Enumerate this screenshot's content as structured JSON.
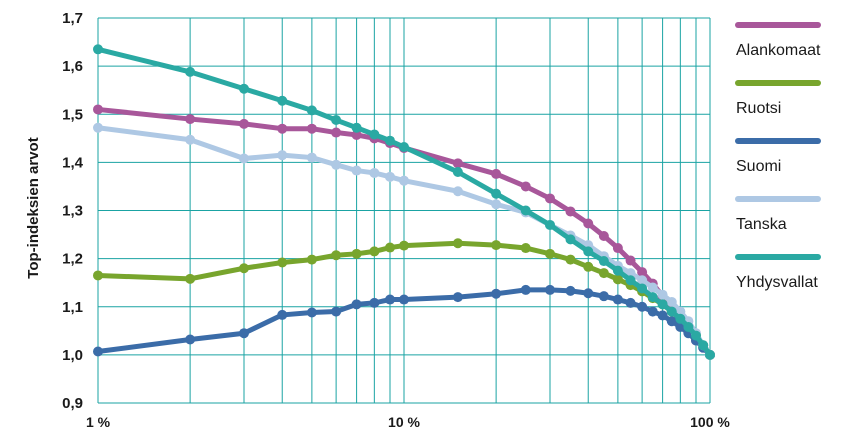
{
  "chart_data": {
    "type": "line",
    "title": "",
    "xlabel": "",
    "ylabel": "Top-indeksien arvot",
    "x_scale": "log",
    "xlim": [
      1,
      100
    ],
    "ylim": [
      0.9,
      1.7
    ],
    "x_ticks": [
      {
        "value": 1,
        "label": "1 %"
      },
      {
        "value": 10,
        "label": "10 %"
      },
      {
        "value": 100,
        "label": "100 %"
      }
    ],
    "y_ticks": [
      {
        "value": 0.9,
        "label": "0,9"
      },
      {
        "value": 1.0,
        "label": "1,0"
      },
      {
        "value": 1.1,
        "label": "1,1"
      },
      {
        "value": 1.2,
        "label": "1,2"
      },
      {
        "value": 1.3,
        "label": "1,3"
      },
      {
        "value": 1.4,
        "label": "1,4"
      },
      {
        "value": 1.5,
        "label": "1,5"
      },
      {
        "value": 1.6,
        "label": "1,6"
      },
      {
        "value": 1.7,
        "label": "1,7"
      }
    ],
    "grid": true,
    "grid_color": "#1aa3a3",
    "legend_position": "right",
    "series": [
      {
        "name": "Alankomaat",
        "color": "#a8579a",
        "points": [
          [
            1,
            1.51
          ],
          [
            2,
            1.49
          ],
          [
            3,
            1.48
          ],
          [
            4,
            1.47
          ],
          [
            5,
            1.47
          ],
          [
            6,
            1.462
          ],
          [
            7,
            1.457
          ],
          [
            8,
            1.45
          ],
          [
            9,
            1.44
          ],
          [
            10,
            1.43
          ],
          [
            15,
            1.398
          ],
          [
            20,
            1.376
          ],
          [
            25,
            1.35
          ],
          [
            30,
            1.325
          ],
          [
            35,
            1.298
          ],
          [
            40,
            1.273
          ],
          [
            45,
            1.247
          ],
          [
            50,
            1.222
          ],
          [
            55,
            1.196
          ],
          [
            60,
            1.172
          ],
          [
            65,
            1.148
          ],
          [
            70,
            1.122
          ],
          [
            75,
            1.098
          ],
          [
            80,
            1.073
          ],
          [
            85,
            1.05
          ],
          [
            90,
            1.03
          ],
          [
            95,
            1.015
          ],
          [
            100,
            1.0
          ]
        ]
      },
      {
        "name": "Ruotsi",
        "color": "#78a52d",
        "points": [
          [
            1,
            1.165
          ],
          [
            2,
            1.158
          ],
          [
            3,
            1.18
          ],
          [
            4,
            1.192
          ],
          [
            5,
            1.198
          ],
          [
            6,
            1.207
          ],
          [
            7,
            1.21
          ],
          [
            8,
            1.215
          ],
          [
            9,
            1.223
          ],
          [
            10,
            1.227
          ],
          [
            15,
            1.232
          ],
          [
            20,
            1.228
          ],
          [
            25,
            1.222
          ],
          [
            30,
            1.21
          ],
          [
            35,
            1.198
          ],
          [
            40,
            1.183
          ],
          [
            45,
            1.17
          ],
          [
            50,
            1.157
          ],
          [
            55,
            1.145
          ],
          [
            60,
            1.132
          ],
          [
            65,
            1.118
          ],
          [
            70,
            1.105
          ],
          [
            75,
            1.09
          ],
          [
            80,
            1.075
          ],
          [
            85,
            1.06
          ],
          [
            90,
            1.042
          ],
          [
            95,
            1.02
          ],
          [
            100,
            1.0
          ]
        ]
      },
      {
        "name": "Suomi",
        "color": "#3b6ca8",
        "points": [
          [
            1,
            1.007
          ],
          [
            2,
            1.032
          ],
          [
            3,
            1.045
          ],
          [
            4,
            1.083
          ],
          [
            5,
            1.088
          ],
          [
            6,
            1.09
          ],
          [
            7,
            1.105
          ],
          [
            8,
            1.108
          ],
          [
            9,
            1.115
          ],
          [
            10,
            1.115
          ],
          [
            15,
            1.12
          ],
          [
            20,
            1.127
          ],
          [
            25,
            1.135
          ],
          [
            30,
            1.135
          ],
          [
            35,
            1.133
          ],
          [
            40,
            1.128
          ],
          [
            45,
            1.122
          ],
          [
            50,
            1.115
          ],
          [
            55,
            1.108
          ],
          [
            60,
            1.1
          ],
          [
            65,
            1.09
          ],
          [
            70,
            1.082
          ],
          [
            75,
            1.07
          ],
          [
            80,
            1.058
          ],
          [
            85,
            1.045
          ],
          [
            90,
            1.03
          ],
          [
            95,
            1.015
          ],
          [
            100,
            1.0
          ]
        ]
      },
      {
        "name": "Tanska",
        "color": "#aec8e4",
        "points": [
          [
            1,
            1.472
          ],
          [
            2,
            1.447
          ],
          [
            3,
            1.408
          ],
          [
            4,
            1.415
          ],
          [
            5,
            1.41
          ],
          [
            6,
            1.395
          ],
          [
            7,
            1.383
          ],
          [
            8,
            1.378
          ],
          [
            9,
            1.37
          ],
          [
            10,
            1.362
          ],
          [
            15,
            1.34
          ],
          [
            20,
            1.313
          ],
          [
            25,
            1.296
          ],
          [
            30,
            1.27
          ],
          [
            35,
            1.248
          ],
          [
            40,
            1.228
          ],
          [
            45,
            1.205
          ],
          [
            50,
            1.185
          ],
          [
            55,
            1.17
          ],
          [
            60,
            1.155
          ],
          [
            65,
            1.14
          ],
          [
            70,
            1.125
          ],
          [
            75,
            1.11
          ],
          [
            80,
            1.09
          ],
          [
            85,
            1.07
          ],
          [
            90,
            1.045
          ],
          [
            95,
            1.02
          ],
          [
            100,
            1.0
          ]
        ]
      },
      {
        "name": "Yhdysvallat",
        "color": "#2aa9a3",
        "points": [
          [
            1,
            1.635
          ],
          [
            2,
            1.588
          ],
          [
            3,
            1.553
          ],
          [
            4,
            1.528
          ],
          [
            5,
            1.508
          ],
          [
            6,
            1.488
          ],
          [
            7,
            1.472
          ],
          [
            8,
            1.458
          ],
          [
            9,
            1.445
          ],
          [
            10,
            1.432
          ],
          [
            15,
            1.38
          ],
          [
            20,
            1.335
          ],
          [
            25,
            1.3
          ],
          [
            30,
            1.27
          ],
          [
            35,
            1.24
          ],
          [
            40,
            1.215
          ],
          [
            45,
            1.195
          ],
          [
            50,
            1.175
          ],
          [
            55,
            1.155
          ],
          [
            60,
            1.138
          ],
          [
            65,
            1.12
          ],
          [
            70,
            1.105
          ],
          [
            75,
            1.09
          ],
          [
            80,
            1.075
          ],
          [
            85,
            1.058
          ],
          [
            90,
            1.04
          ],
          [
            95,
            1.02
          ],
          [
            100,
            1.0
          ]
        ]
      }
    ]
  }
}
